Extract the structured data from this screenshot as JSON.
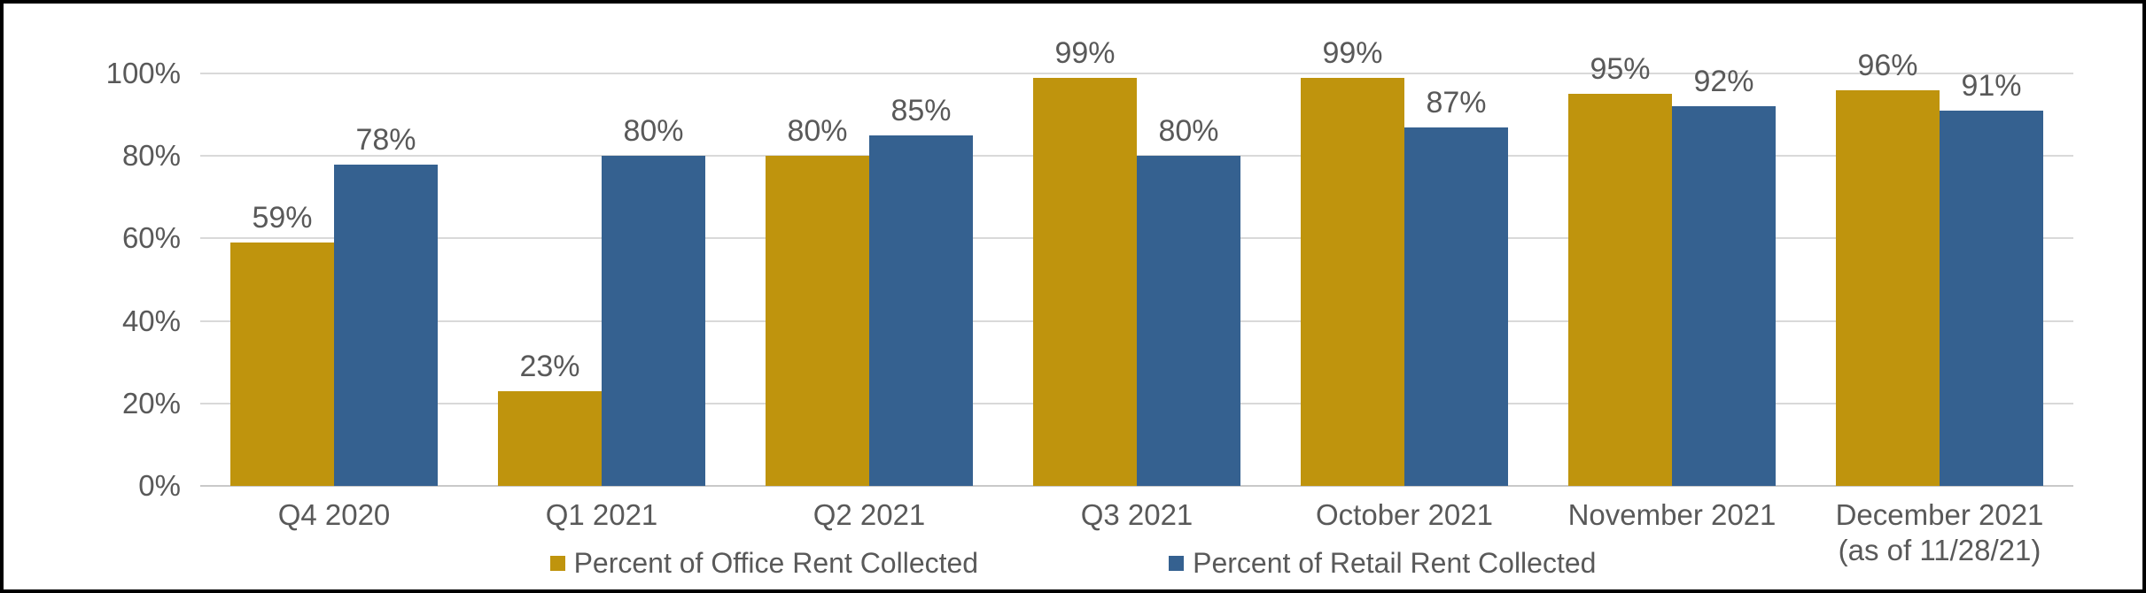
{
  "chart_data": {
    "type": "bar",
    "title": "",
    "categories": [
      "Q4 2020",
      "Q1 2021",
      "Q2 2021",
      "Q3 2021",
      "October 2021",
      "November 2021",
      "December 2021\n(as of 11/28/21)"
    ],
    "series": [
      {
        "name": "Percent of Office Rent Collected",
        "color": "#BF940D",
        "values": [
          59,
          23,
          80,
          99,
          99,
          95,
          96
        ]
      },
      {
        "name": "Percent of Retail Rent Collected",
        "color": "#356190",
        "values": [
          78,
          80,
          85,
          80,
          87,
          92,
          91
        ]
      }
    ],
    "data_labels": [
      "59%",
      "23%",
      "80%",
      "99%",
      "99%",
      "95%",
      "96%",
      "78%",
      "80%",
      "85%",
      "80%",
      "87%",
      "92%",
      "91%"
    ],
    "y_ticks": [
      0,
      20,
      40,
      60,
      80,
      100
    ],
    "y_tick_labels": [
      "0%",
      "20%",
      "40%",
      "60%",
      "80%",
      "100%"
    ],
    "ylim": [
      0,
      100
    ],
    "xlabel": "",
    "ylabel": "",
    "grid": true,
    "legend_position": "bottom"
  },
  "styles": {
    "text_color": "#595959",
    "gridline_color": "#D9D9D9",
    "axis_line_color": "#C9C9C9",
    "background": "#FFFFFF",
    "frame_border_color": "#000000",
    "office_series_color": "#BF940D",
    "retail_series_color": "#356190"
  }
}
